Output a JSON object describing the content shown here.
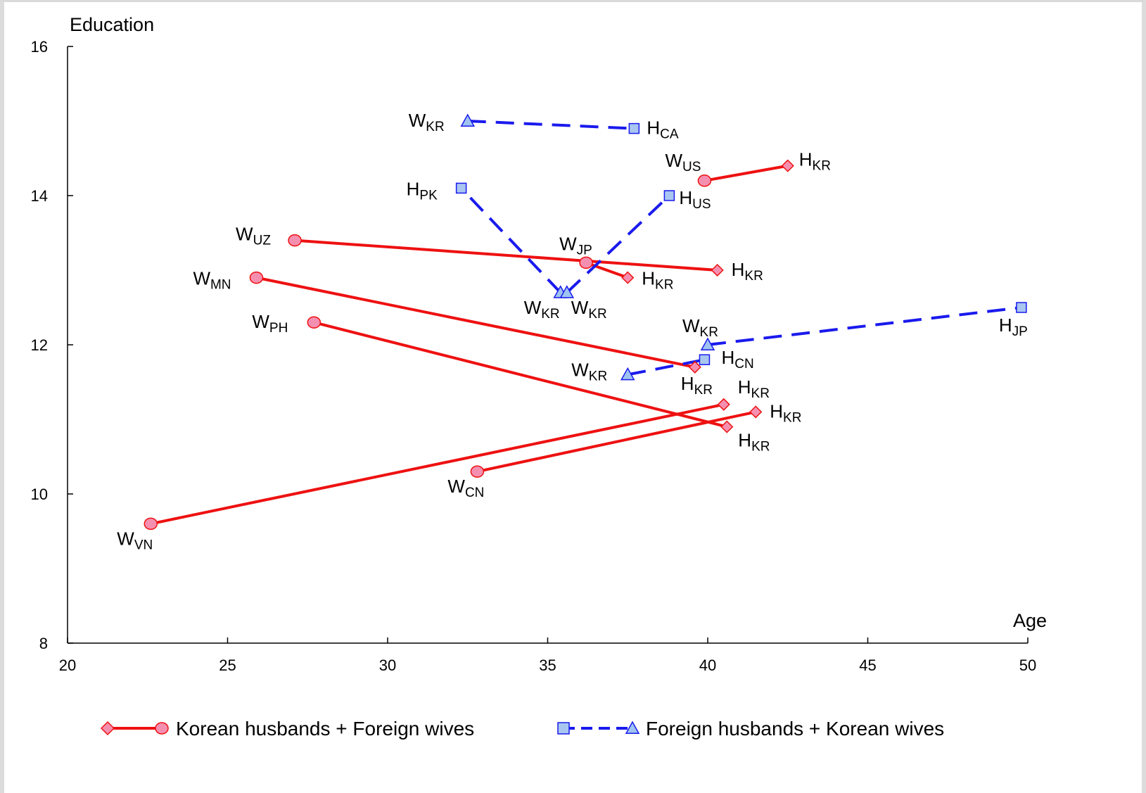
{
  "colors": {
    "korean_husbands": "#ee1111",
    "foreign_husbands": "#1a1aee",
    "circle_fill": "#f58fb0",
    "diamond_fill": "#f58fb0",
    "square_fill": "#a9c6f0",
    "triangle_fill": "#9fc3ef"
  },
  "chart_data": {
    "type": "line",
    "ylabel": "Education",
    "xlabel": "Age",
    "xlim": [
      20,
      50
    ],
    "ylim": [
      8,
      16
    ],
    "xticks": [
      20,
      25,
      30,
      35,
      40,
      45,
      50
    ],
    "yticks": [
      8,
      10,
      12,
      14,
      16
    ],
    "grid": false,
    "legend_position": "bottom",
    "series": [
      {
        "name": "Korean husbands + Foreign wives",
        "style": "solid",
        "color": "#ee1111",
        "pairs": [
          {
            "wife": {
              "x": 22.6,
              "y": 9.6,
              "label": "W",
              "sub": "VN"
            },
            "husband": {
              "x": 40.5,
              "y": 11.2,
              "label": "H",
              "sub": "KR"
            }
          },
          {
            "wife": {
              "x": 32.8,
              "y": 10.3,
              "label": "W",
              "sub": "CN"
            },
            "husband": {
              "x": 41.5,
              "y": 11.1,
              "label": "H",
              "sub": "KR"
            }
          },
          {
            "wife": {
              "x": 27.7,
              "y": 12.3,
              "label": "W",
              "sub": "PH"
            },
            "husband": {
              "x": 40.6,
              "y": 10.9,
              "label": "H",
              "sub": "KR"
            }
          },
          {
            "wife": {
              "x": 25.9,
              "y": 12.9,
              "label": "W",
              "sub": "MN"
            },
            "husband": {
              "x": 39.6,
              "y": 11.7,
              "label": "H",
              "sub": "KR"
            }
          },
          {
            "wife": {
              "x": 27.1,
              "y": 13.4,
              "label": "W",
              "sub": "UZ"
            },
            "husband": {
              "x": 40.3,
              "y": 13.0,
              "label": "H",
              "sub": "KR"
            }
          },
          {
            "wife": {
              "x": 36.2,
              "y": 13.1,
              "label": "W",
              "sub": "JP"
            },
            "husband": {
              "x": 37.5,
              "y": 12.9,
              "label": "H",
              "sub": "KR"
            }
          },
          {
            "wife": {
              "x": 39.9,
              "y": 14.2,
              "label": "W",
              "sub": "US"
            },
            "husband": {
              "x": 42.5,
              "y": 14.4,
              "label": "H",
              "sub": "KR"
            }
          }
        ]
      },
      {
        "name": "Foreign husbands + Korean wives",
        "style": "dashed",
        "color": "#1a1aee",
        "pairs": [
          {
            "wife": {
              "x": 32.5,
              "y": 15.0,
              "label": "W",
              "sub": "KR"
            },
            "husband": {
              "x": 37.7,
              "y": 14.9,
              "label": "H",
              "sub": "CA"
            }
          },
          {
            "wife": {
              "x": 35.4,
              "y": 12.7,
              "label": "W",
              "sub": "KR"
            },
            "husband": {
              "x": 32.3,
              "y": 14.1,
              "label": "H",
              "sub": "PK"
            }
          },
          {
            "wife": {
              "x": 35.6,
              "y": 12.7,
              "label": "W",
              "sub": "KR"
            },
            "husband": {
              "x": 38.8,
              "y": 14.0,
              "label": "H",
              "sub": "US"
            }
          },
          {
            "wife": {
              "x": 37.5,
              "y": 11.6,
              "label": "W",
              "sub": "KR"
            },
            "husband": {
              "x": 39.9,
              "y": 11.8,
              "label": "H",
              "sub": "CN"
            }
          },
          {
            "wife": {
              "x": 40.0,
              "y": 12.0,
              "label": "W",
              "sub": "KR"
            },
            "husband": {
              "x": 49.8,
              "y": 12.5,
              "label": "H",
              "sub": "JP"
            }
          }
        ]
      }
    ]
  }
}
